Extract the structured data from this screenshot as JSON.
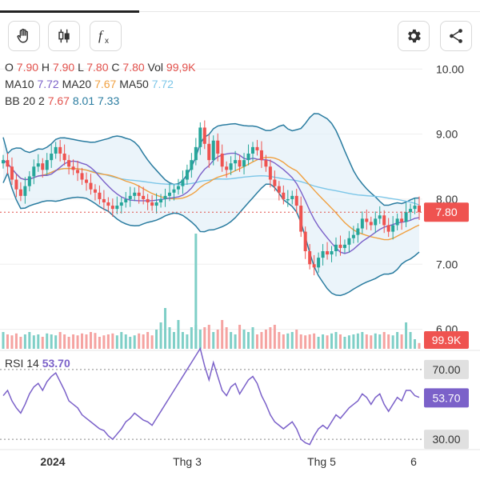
{
  "toolbar": {
    "left_icons": [
      "hand-icon",
      "candlestick-icon",
      "function-icon"
    ],
    "right_icons": [
      "gear-icon",
      "share-icon"
    ]
  },
  "legend": {
    "ohlc": {
      "o_label": "O",
      "o": "7.90",
      "h_label": "H",
      "h": "7.90",
      "l_label": "L",
      "l": "7.80",
      "c_label": "C",
      "c": "7.80",
      "vol_label": "Vol",
      "vol": "99,9K"
    },
    "ma": {
      "ma10_label": "MA10",
      "ma10": "7.72",
      "ma20_label": "MA20",
      "ma20": "7.67",
      "ma50_label": "MA50",
      "ma50": "7.72"
    },
    "bb": {
      "label": "BB 20 2",
      "mid": "7.67",
      "upper": "8.01",
      "lower": "7.33"
    }
  },
  "rsi": {
    "label": "RSI 14",
    "value": "53.70"
  },
  "colors": {
    "up": "#26a69a",
    "down": "#ef5350",
    "ma10": "#7b61c9",
    "ma20": "#f0a040",
    "ma50": "#7cc6e8",
    "bb": "#2a7ca0",
    "bb_fill": "#e3f0f8",
    "rsi": "#7b61c9"
  },
  "chart_data": {
    "type": "candlestick",
    "price_axis": {
      "ticks": [
        "10.00",
        "9.00",
        "8.00",
        "7.00",
        "6.00"
      ],
      "range": [
        5.7,
        10.2
      ]
    },
    "current_price_label": "7.80",
    "volume_label": "99.9K",
    "rsi_axis": {
      "ticks": [
        "70.00",
        "30.00"
      ],
      "current_label": "53.70",
      "range": [
        25,
        80
      ]
    },
    "x_labels": [
      "2024",
      "Thg 3",
      "Thg 5",
      "6"
    ],
    "close": [
      8.6,
      8.5,
      8.3,
      8.15,
      8.05,
      8.2,
      8.35,
      8.5,
      8.55,
      8.45,
      8.6,
      8.7,
      8.8,
      8.7,
      8.6,
      8.5,
      8.45,
      8.4,
      8.3,
      8.25,
      8.15,
      8.1,
      8.0,
      7.95,
      7.9,
      7.85,
      7.9,
      7.95,
      8.0,
      8.05,
      8.1,
      8.05,
      8.0,
      7.95,
      7.9,
      7.95,
      8.0,
      8.05,
      8.1,
      8.15,
      8.2,
      8.3,
      8.45,
      8.6,
      8.8,
      9.1,
      8.85,
      8.6,
      8.9,
      8.7,
      8.5,
      8.45,
      8.55,
      8.6,
      8.5,
      8.6,
      8.7,
      8.8,
      8.75,
      8.6,
      8.5,
      8.3,
      8.2,
      8.1,
      8.0,
      8.0,
      8.05,
      7.9,
      7.5,
      7.2,
      7.0,
      6.95,
      7.1,
      7.2,
      7.15,
      7.2,
      7.3,
      7.25,
      7.3,
      7.4,
      7.45,
      7.55,
      7.7,
      7.65,
      7.6,
      7.7,
      7.75,
      7.6,
      7.5,
      7.6,
      7.7,
      7.65,
      7.8,
      7.85,
      7.9,
      7.8
    ],
    "volume": [
      0.35,
      0.3,
      0.28,
      0.32,
      0.25,
      0.3,
      0.35,
      0.28,
      0.3,
      0.25,
      0.32,
      0.3,
      0.28,
      0.35,
      0.3,
      0.25,
      0.3,
      0.28,
      0.32,
      0.3,
      0.35,
      0.33,
      0.25,
      0.28,
      0.3,
      0.32,
      0.28,
      0.35,
      0.3,
      0.25,
      0.28,
      0.32,
      0.3,
      0.35,
      0.28,
      0.4,
      0.55,
      0.85,
      0.45,
      0.35,
      0.6,
      0.35,
      0.3,
      0.45,
      0.5,
      0.4,
      0.45,
      0.5,
      0.35,
      0.4,
      0.6,
      0.45,
      0.35,
      0.3,
      0.5,
      0.4,
      0.35,
      0.45,
      0.3,
      0.35,
      0.4,
      0.45,
      0.5,
      0.35,
      0.3,
      0.32,
      0.35,
      0.4,
      0.3,
      0.28,
      0.3,
      0.32,
      0.25,
      0.3,
      0.28,
      0.32,
      0.35,
      0.3,
      0.25,
      0.28,
      0.3,
      0.32,
      0.35,
      0.3,
      0.28,
      0.32,
      0.3,
      0.35,
      0.3,
      0.28,
      0.35,
      0.3,
      0.55,
      0.35,
      0.2,
      0.12
    ],
    "big_volume_spike": {
      "index": 44,
      "value": 1.6
    },
    "rsi": [
      55,
      58,
      52,
      48,
      45,
      50,
      56,
      60,
      62,
      58,
      63,
      66,
      68,
      63,
      58,
      52,
      50,
      48,
      44,
      42,
      40,
      38,
      36,
      35,
      32,
      30,
      33,
      36,
      40,
      42,
      45,
      43,
      41,
      40,
      38,
      42,
      46,
      50,
      54,
      58,
      62,
      66,
      70,
      74,
      78,
      82,
      72,
      64,
      74,
      66,
      58,
      55,
      60,
      62,
      56,
      60,
      64,
      66,
      62,
      55,
      50,
      44,
      40,
      38,
      36,
      38,
      40,
      36,
      30,
      28,
      27,
      32,
      36,
      38,
      36,
      40,
      44,
      42,
      45,
      48,
      50,
      52,
      56,
      54,
      50,
      54,
      56,
      50,
      46,
      50,
      54,
      52,
      58,
      58,
      55,
      54
    ],
    "ma10_label": "MA10",
    "ma20_label": "MA20",
    "ma50_label": "MA50",
    "bb_label": "BB 20 2"
  }
}
